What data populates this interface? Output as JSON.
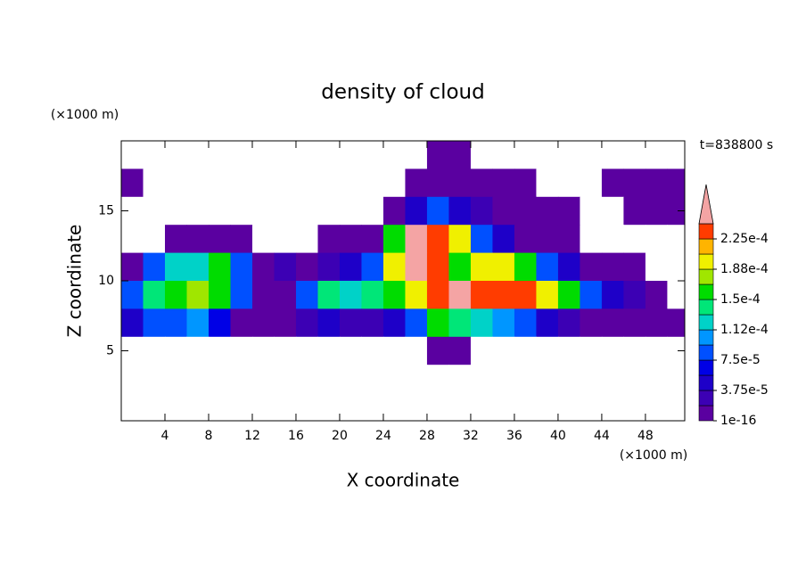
{
  "chart_data": {
    "type": "contour",
    "title": "density of cloud",
    "x_label": "X coordinate",
    "y_label": "Z coordinate",
    "x_unit": "(×1000 m)",
    "y_unit": "(×1000 m)",
    "annotation": "t=838800 s",
    "xlim": [
      0,
      51.6
    ],
    "ylim": [
      0,
      20
    ],
    "xticks": [
      4,
      8,
      12,
      16,
      20,
      24,
      28,
      32,
      36,
      40,
      44,
      48
    ],
    "yticks": [
      5,
      10,
      15
    ],
    "x": [
      1,
      3,
      5,
      7,
      9,
      11,
      13,
      15,
      17,
      19,
      21,
      23,
      25,
      27,
      29,
      31,
      33,
      35,
      37,
      39,
      41,
      43,
      45,
      47,
      49,
      51
    ],
    "y": [
      19,
      17,
      15,
      13,
      11,
      9,
      7,
      5,
      3,
      1
    ],
    "values": [
      [
        0,
        0,
        0,
        0,
        0,
        0,
        0,
        0,
        0,
        0,
        0,
        0,
        0,
        0,
        1e-16,
        1e-16,
        0,
        0,
        0,
        0,
        0,
        0,
        0,
        0,
        0,
        0
      ],
      [
        1e-16,
        0,
        0,
        0,
        0,
        0,
        0,
        0,
        0,
        0,
        0,
        0,
        0,
        1e-16,
        1e-16,
        1e-16,
        1e-16,
        1e-16,
        1e-16,
        0,
        0,
        0,
        1e-16,
        1e-16,
        1e-16,
        1e-16
      ],
      [
        0,
        0,
        0,
        0,
        0,
        0,
        0,
        0,
        0,
        0,
        0,
        0,
        1e-16,
        4e-05,
        8e-05,
        4e-05,
        2e-05,
        1e-16,
        1e-16,
        1e-16,
        1e-16,
        0,
        0,
        1e-16,
        1e-16,
        1e-16
      ],
      [
        0,
        0,
        1e-16,
        1e-16,
        1e-16,
        1e-16,
        0,
        0,
        0,
        1e-16,
        1e-16,
        1e-16,
        0.00016,
        0.00026,
        0.00023,
        0.0002,
        8e-05,
        4e-05,
        1e-16,
        1e-16,
        1e-16,
        0,
        0,
        0,
        0,
        0
      ],
      [
        1e-16,
        8e-05,
        0.00012,
        0.00012,
        0.00016,
        8e-05,
        1e-16,
        2e-05,
        1e-16,
        2e-05,
        4e-05,
        8e-05,
        0.0002,
        0.00026,
        0.00023,
        0.00016,
        0.0002,
        0.0002,
        0.00016,
        8e-05,
        4e-05,
        1e-16,
        1e-16,
        1e-16,
        0,
        0
      ],
      [
        8e-05,
        0.00014,
        0.00016,
        0.00018,
        0.00016,
        8e-05,
        1e-16,
        1e-16,
        8e-05,
        0.00014,
        0.00012,
        0.00014,
        0.00016,
        0.0002,
        0.00023,
        0.00026,
        0.00023,
        0.00023,
        0.00023,
        0.0002,
        0.00016,
        8e-05,
        4e-05,
        2e-05,
        1e-16,
        0
      ],
      [
        4e-05,
        8e-05,
        8e-05,
        0.0001,
        6e-05,
        1e-16,
        1e-16,
        1e-16,
        2e-05,
        4e-05,
        2e-05,
        2e-05,
        4e-05,
        8e-05,
        0.00016,
        0.00014,
        0.00012,
        0.0001,
        8e-05,
        4e-05,
        2e-05,
        1e-16,
        1e-16,
        1e-16,
        1e-16,
        1e-16
      ],
      [
        0,
        0,
        0,
        0,
        0,
        0,
        0,
        0,
        0,
        0,
        0,
        0,
        0,
        0,
        1e-16,
        1e-16,
        0,
        0,
        0,
        0,
        0,
        0,
        0,
        0,
        0,
        0
      ],
      [
        0,
        0,
        0,
        0,
        0,
        0,
        0,
        0,
        0,
        0,
        0,
        0,
        0,
        0,
        0,
        0,
        0,
        0,
        0,
        0,
        0,
        0,
        0,
        0,
        0,
        0
      ],
      [
        0,
        0,
        0,
        0,
        0,
        0,
        0,
        0,
        0,
        0,
        0,
        0,
        0,
        0,
        0,
        0,
        0,
        0,
        0,
        0,
        0,
        0,
        0,
        0,
        0,
        0
      ]
    ],
    "levels": [
      1e-16,
      1.875e-05,
      3.75e-05,
      5.625e-05,
      7.5e-05,
      9.375e-05,
      0.0001125,
      0.00013125,
      0.00015,
      0.00016875,
      0.0001875,
      0.00020625,
      0.000225,
      0.00024375
    ],
    "colors": [
      "#5a00a0",
      "#3c00b4",
      "#1e00c8",
      "#0000e6",
      "#0050ff",
      "#0096ff",
      "#00d2c8",
      "#00e678",
      "#00dc00",
      "#a0e600",
      "#f0f000",
      "#ffb400",
      "#ff3c00"
    ],
    "over_color": "#f4a4a4",
    "colorbar_ticks": [
      1e-16,
      {
        "value": 3.75e-05,
        "label": "3.75e-5"
      },
      {
        "value": 7.5e-05,
        "label": "7.5e-5"
      },
      {
        "value": 0.0001125,
        "label": "1.12e-4"
      },
      {
        "value": 0.00015,
        "label": "1.5e-4"
      },
      {
        "value": 0.0001875,
        "label": "1.88e-4"
      },
      {
        "value": 0.000225,
        "label": "2.25e-4"
      }
    ]
  }
}
